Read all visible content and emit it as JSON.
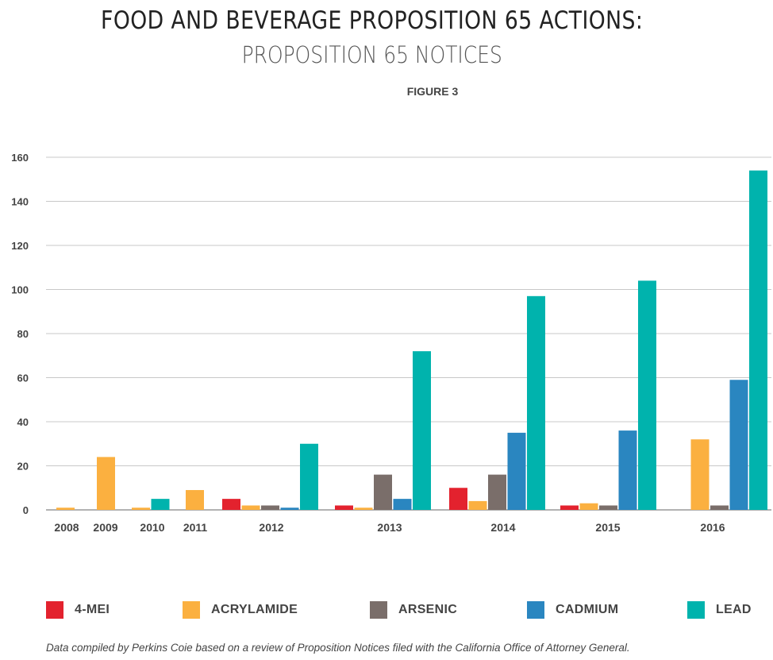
{
  "header": {
    "title": "FOOD AND BEVERAGE PROPOSITION 65 ACTIONS:",
    "subtitle": "PROPOSITION 65 NOTICES",
    "figure_label": "FIGURE 3"
  },
  "footnote": "Data compiled by Perkins Coie based on a review of Proposition Notices filed with the California Office of Attorney General.",
  "chart_data": {
    "type": "bar",
    "categories": [
      "2008",
      "2009",
      "2010",
      "2011",
      "2012",
      "2013",
      "2014",
      "2015",
      "2016"
    ],
    "yticks": [
      "0",
      "20",
      "40",
      "60",
      "80",
      "100",
      "120",
      "140",
      "160"
    ],
    "ylim": [
      0,
      160
    ],
    "grid": true,
    "legend_position": "bottom",
    "series": [
      {
        "name": "4-MEI",
        "color": "#e3222e",
        "values": [
          0,
          0,
          0,
          0,
          5,
          2,
          10,
          2,
          0
        ]
      },
      {
        "name": "ACRYLAMIDE",
        "color": "#fbb040",
        "values": [
          1,
          24,
          1,
          9,
          2,
          1,
          4,
          3,
          32
        ]
      },
      {
        "name": "ARSENIC",
        "color": "#7a6e6a",
        "values": [
          0,
          0,
          0,
          0,
          2,
          16,
          16,
          2,
          2
        ]
      },
      {
        "name": "CADMIUM",
        "color": "#2a86c0",
        "values": [
          0,
          0,
          0,
          0,
          1,
          5,
          35,
          36,
          59
        ]
      },
      {
        "name": "LEAD",
        "color": "#00b3ad",
        "values": [
          0,
          0,
          5,
          0,
          30,
          72,
          97,
          104,
          154
        ]
      }
    ]
  }
}
